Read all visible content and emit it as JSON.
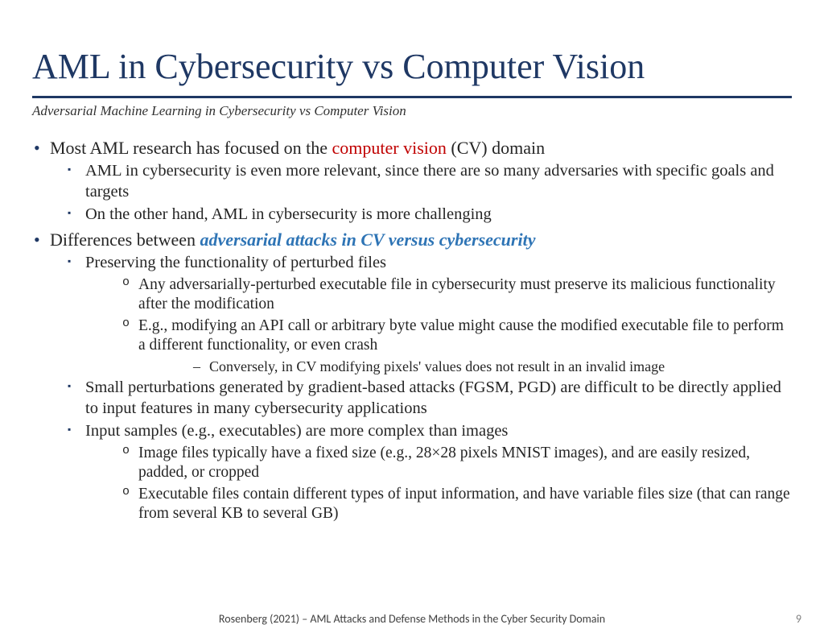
{
  "title": "AML in Cybersecurity vs Computer Vision",
  "subtitle": "Adversarial Machine Learning in Cybersecurity vs Computer Vision",
  "colors": {
    "title": "#1f3864",
    "rule": "#1f3864",
    "text": "#252525",
    "highlight_red": "#c00000",
    "highlight_blue": "#2e74b5",
    "footer": "#404040",
    "pagenum": "#808080",
    "background": "#ffffff"
  },
  "b1": {
    "pre": "Most AML research has focused on the ",
    "hl": "computer vision",
    "post": " (CV) domain",
    "s1": "AML in cybersecurity is even more relevant, since there are so many adversaries with specific goals and targets",
    "s2": "On the other hand, AML in cybersecurity is more challenging"
  },
  "b2": {
    "pre": "Differences between ",
    "hl": "adversarial attacks in CV versus cybersecurity",
    "s1": {
      "text": "Preserving the functionality of perturbed files",
      "o1": "Any adversarially-perturbed executable file in cybersecurity must preserve its malicious functionality after the modification",
      "o2": "E.g., modifying an API call or arbitrary byte value might cause the modified executable file to perform a different functionality, or even crash",
      "d1": "Conversely, in CV modifying pixels' values does not result in an invalid image"
    },
    "s2": "Small perturbations generated by gradient-based attacks (FGSM, PGD) are difficult to be directly applied to input features in many cybersecurity applications",
    "s3": {
      "text": "Input samples (e.g., executables) are more complex than images",
      "o1": "Image files typically have a fixed size (e.g., 28×28 pixels MNIST images), and are easily resized, padded, or cropped",
      "o2": "Executable files contain different types of input information, and have variable files size (that can range from several KB to several GB)"
    }
  },
  "footer": "Rosenberg (2021) – AML Attacks and Defense Methods in the Cyber Security Domain",
  "pagenum": "9"
}
